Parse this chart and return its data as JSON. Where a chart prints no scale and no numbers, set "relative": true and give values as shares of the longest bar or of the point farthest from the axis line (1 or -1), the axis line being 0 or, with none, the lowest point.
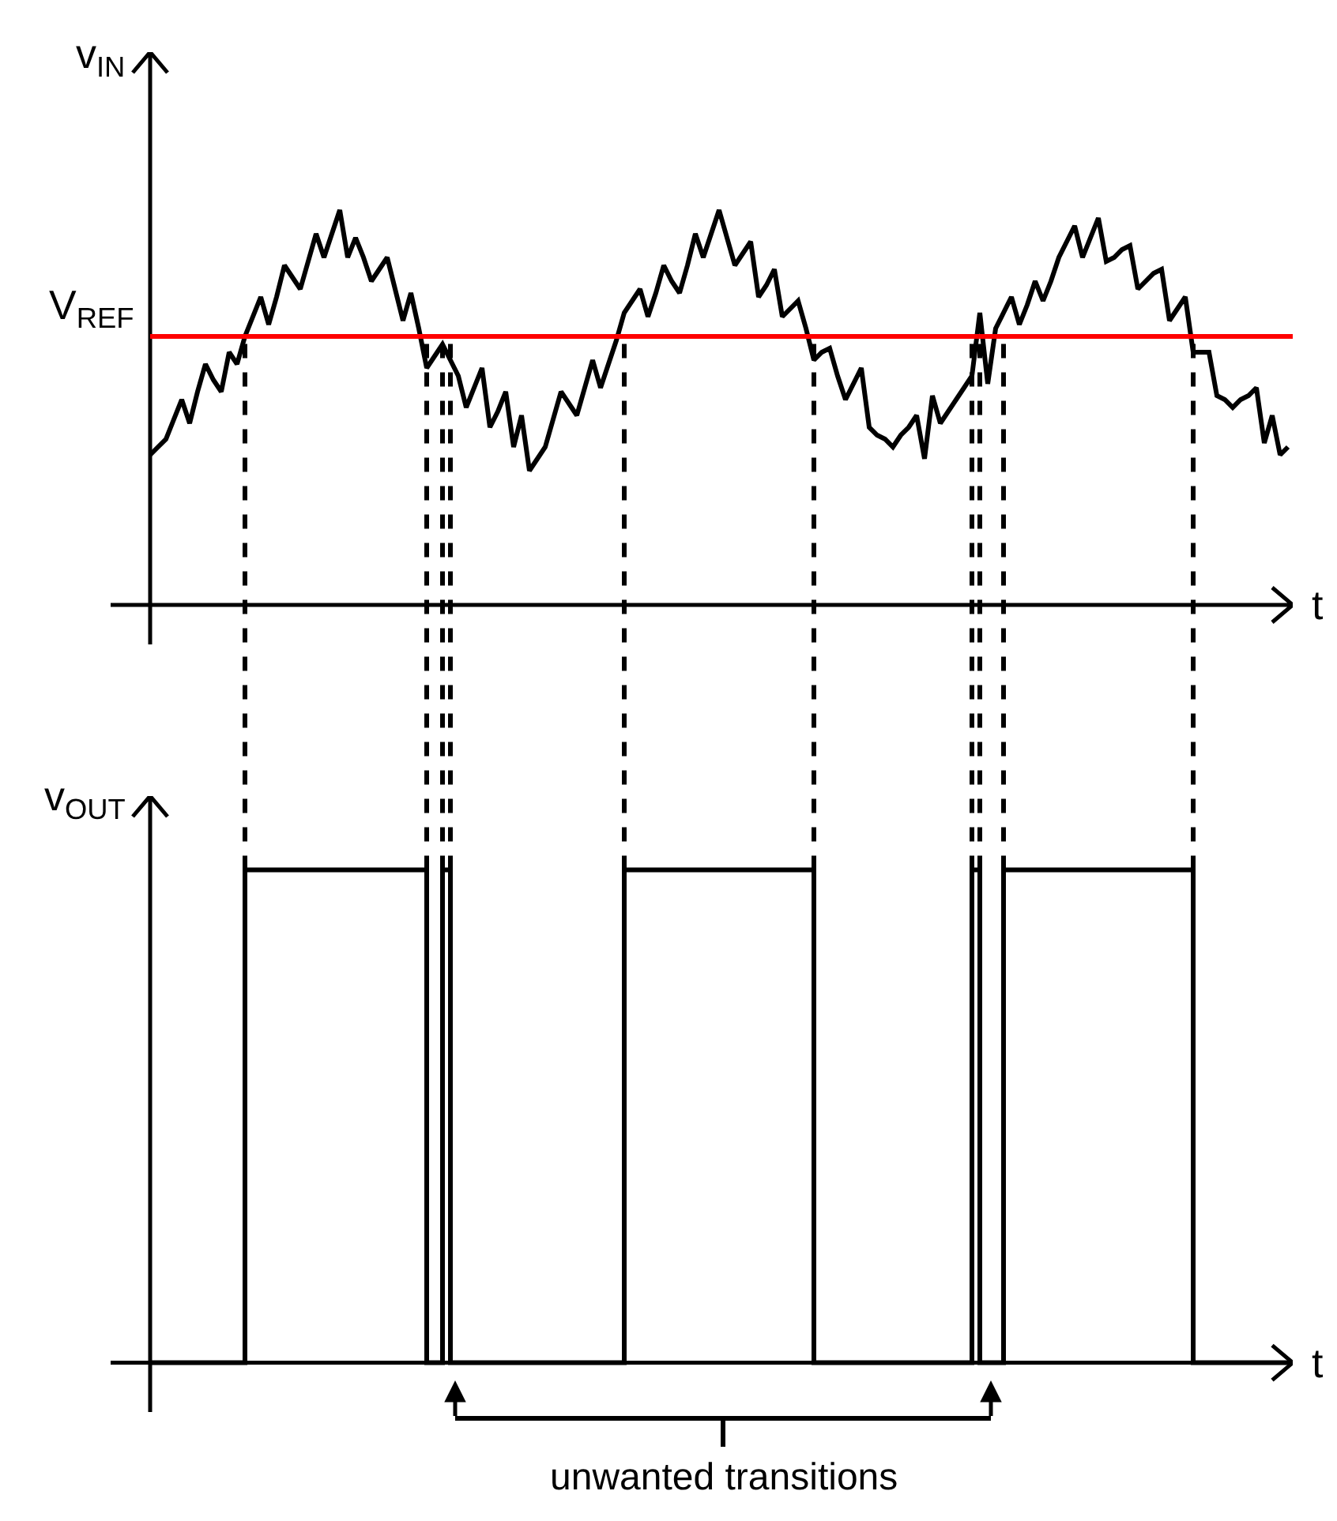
{
  "chart_data": [
    {
      "type": "line",
      "ylabel": "v$_{IN}$",
      "xlabel": "t",
      "relative": true,
      "marker": "none",
      "line_style": "solid",
      "categories": [
        null,
        null,
        null,
        null,
        null,
        null,
        null,
        null,
        null,
        null,
        null,
        null,
        null,
        null,
        null,
        null,
        null,
        null,
        null,
        null,
        null,
        null,
        null,
        null,
        null,
        null,
        null,
        null,
        null,
        null,
        null,
        null,
        null,
        null,
        null,
        null,
        null,
        null,
        null,
        null,
        null,
        null,
        null,
        null,
        null,
        null,
        null,
        null,
        null,
        null,
        null,
        null,
        null,
        null,
        null,
        null,
        null,
        null,
        null,
        null,
        null,
        null,
        null,
        null,
        null,
        null,
        null,
        null,
        null,
        null,
        null,
        null,
        null,
        null,
        null,
        null,
        null,
        null,
        null,
        null,
        null,
        null,
        null,
        null,
        null,
        null,
        null,
        null,
        null,
        null,
        null,
        null,
        null,
        null,
        null,
        null,
        null,
        null,
        null,
        null,
        null,
        null,
        null,
        null,
        null,
        null,
        null,
        null,
        null,
        null,
        null,
        null,
        null,
        null,
        null,
        null,
        null,
        null,
        null,
        null,
        null,
        null,
        null,
        null,
        null,
        null,
        null,
        null,
        null,
        null,
        null,
        null,
        null,
        null,
        null,
        null,
        null,
        null,
        null,
        null,
        null,
        null,
        null,
        null,
        null
      ],
      "series": [
        {
          "color": "#000000",
          "values": [
            0.38,
            0.4,
            0.42,
            0.47,
            0.52,
            0.46,
            0.54,
            0.61,
            0.57,
            0.54,
            0.64,
            0.61,
            0.68,
            0.73,
            0.78,
            0.71,
            0.78,
            0.86,
            0.83,
            0.8,
            0.87,
            0.94,
            0.88,
            0.94,
            1.0,
            0.88,
            0.93,
            0.88,
            0.82,
            0.85,
            0.88,
            0.8,
            0.72,
            0.79,
            0.7,
            0.6,
            0.63,
            0.66,
            0.62,
            0.58,
            0.5,
            0.55,
            0.6,
            0.45,
            0.49,
            0.54,
            0.4,
            0.48,
            0.34,
            0.37,
            0.4,
            0.47,
            0.54,
            0.51,
            0.48,
            0.55,
            0.62,
            0.55,
            0.61,
            0.67,
            0.74,
            0.77,
            0.8,
            0.73,
            0.79,
            0.86,
            0.82,
            0.79,
            0.86,
            0.94,
            0.88,
            0.94,
            1.0,
            0.93,
            0.86,
            0.89,
            0.92,
            0.78,
            0.81,
            0.85,
            0.73,
            0.75,
            0.77,
            0.7,
            0.62,
            0.64,
            0.65,
            0.58,
            0.52,
            0.56,
            0.6,
            0.45,
            0.43,
            0.42,
            0.4,
            0.43,
            0.45,
            0.48,
            0.37,
            0.53,
            0.46,
            0.49,
            0.52,
            0.55,
            0.58,
            0.74,
            0.56,
            0.7,
            0.74,
            0.78,
            0.71,
            0.76,
            0.82,
            0.77,
            0.82,
            0.88,
            0.92,
            0.96,
            0.88,
            0.93,
            0.98,
            0.87,
            0.88,
            0.9,
            0.91,
            0.8,
            0.82,
            0.84,
            0.85,
            0.72,
            0.75,
            0.78,
            0.64,
            0.64,
            0.64,
            0.53,
            0.52,
            0.5,
            0.52,
            0.53,
            0.55,
            0.41,
            0.48,
            0.38,
            0.4
          ]
        }
      ],
      "ref_lines": [
        {
          "axis": "y",
          "value": 0.68,
          "label": "V$_{REF}$",
          "color": "#ff0000",
          "line_style": "solid"
        }
      ]
    },
    {
      "type": "step",
      "ylabel": "v$_{OUT}$",
      "xlabel": "t",
      "relative": true,
      "marker": "none",
      "line_style": "solid",
      "categories": [
        null,
        null,
        null,
        null,
        null,
        null,
        null,
        null,
        null,
        null,
        null,
        null,
        null,
        null,
        null,
        null,
        null,
        null,
        null,
        null,
        null,
        null,
        null,
        null,
        null,
        null,
        null,
        null,
        null,
        null,
        null,
        null,
        null,
        null,
        null,
        null,
        null,
        null,
        null,
        null,
        null,
        null,
        null,
        null,
        null,
        null,
        null,
        null,
        null,
        null,
        null,
        null,
        null,
        null,
        null,
        null,
        null,
        null,
        null,
        null,
        null,
        null,
        null,
        null,
        null,
        null,
        null,
        null,
        null,
        null,
        null,
        null,
        null,
        null,
        null,
        null,
        null,
        null,
        null,
        null,
        null,
        null,
        null,
        null,
        null,
        null,
        null,
        null,
        null,
        null,
        null,
        null,
        null,
        null,
        null,
        null,
        null,
        null,
        null,
        null,
        null,
        null,
        null,
        null,
        null,
        null,
        null,
        null,
        null,
        null,
        null,
        null,
        null,
        null,
        null,
        null,
        null,
        null,
        null,
        null,
        null,
        null,
        null,
        null,
        null,
        null,
        null,
        null,
        null,
        null,
        null,
        null,
        null,
        null,
        null,
        null,
        null,
        null,
        null,
        null,
        null,
        null,
        null,
        null,
        null
      ],
      "series": [
        {
          "color": "#000000",
          "values": [
            0,
            0,
            0,
            0,
            0,
            0,
            0,
            0,
            0,
            0,
            0,
            0,
            1,
            1,
            1,
            1,
            1,
            1,
            1,
            1,
            1,
            1,
            1,
            1,
            1,
            1,
            1,
            1,
            1,
            1,
            1,
            1,
            1,
            1,
            1,
            0,
            0,
            1,
            0,
            0,
            0,
            0,
            0,
            0,
            0,
            0,
            0,
            0,
            0,
            0,
            0,
            0,
            0,
            0,
            0,
            0,
            0,
            0,
            0,
            0,
            1,
            1,
            1,
            1,
            1,
            1,
            1,
            1,
            1,
            1,
            1,
            1,
            1,
            1,
            1,
            1,
            1,
            1,
            1,
            1,
            1,
            1,
            1,
            1,
            0,
            0,
            0,
            0,
            0,
            0,
            0,
            0,
            0,
            0,
            0,
            0,
            0,
            0,
            0,
            0,
            0,
            0,
            0,
            0,
            1,
            0,
            0,
            0,
            1,
            1,
            1,
            1,
            1,
            1,
            1,
            1,
            1,
            1,
            1,
            1,
            1,
            1,
            1,
            1,
            1,
            1,
            1,
            1,
            1,
            1,
            1,
            1,
            0,
            0,
            0,
            0,
            0,
            0,
            0,
            0,
            0,
            0,
            0,
            0,
            0
          ]
        }
      ],
      "annotations": [
        "unwanted transitions"
      ]
    }
  ]
}
